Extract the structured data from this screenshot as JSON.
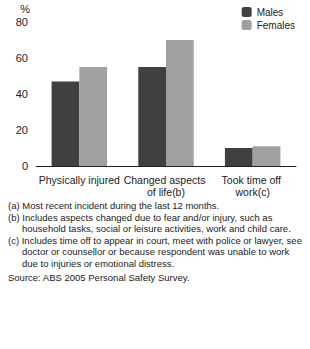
{
  "chart_data": {
    "type": "bar",
    "y_label": "%",
    "categories": [
      "Physically injured",
      "Changed aspects of life(b)",
      "Took time off work(c)"
    ],
    "series": [
      {
        "name": "Males",
        "color": "#404040",
        "values": [
          47,
          55,
          10
        ]
      },
      {
        "name": "Females",
        "color": "#a0a0a0",
        "values": [
          55,
          70,
          11
        ]
      }
    ],
    "ylim": [
      0,
      80
    ],
    "yticks": [
      0,
      20,
      40,
      60,
      80
    ],
    "grid": false,
    "legend": "top-right",
    "notes": [
      "(a) Most recent incident during the last 12 months.",
      "(b) Includes aspects changed due to fear and/or injury, such as household tasks, social or leisure activities, work and child care.",
      "(c) Includes time off to appear in court, meet with police or lawyer, see doctor or counsellor or because respondent was unable to work due to injuries or emotional distress."
    ],
    "source": "Source: ABS 2005 Personal Safety Survey."
  }
}
